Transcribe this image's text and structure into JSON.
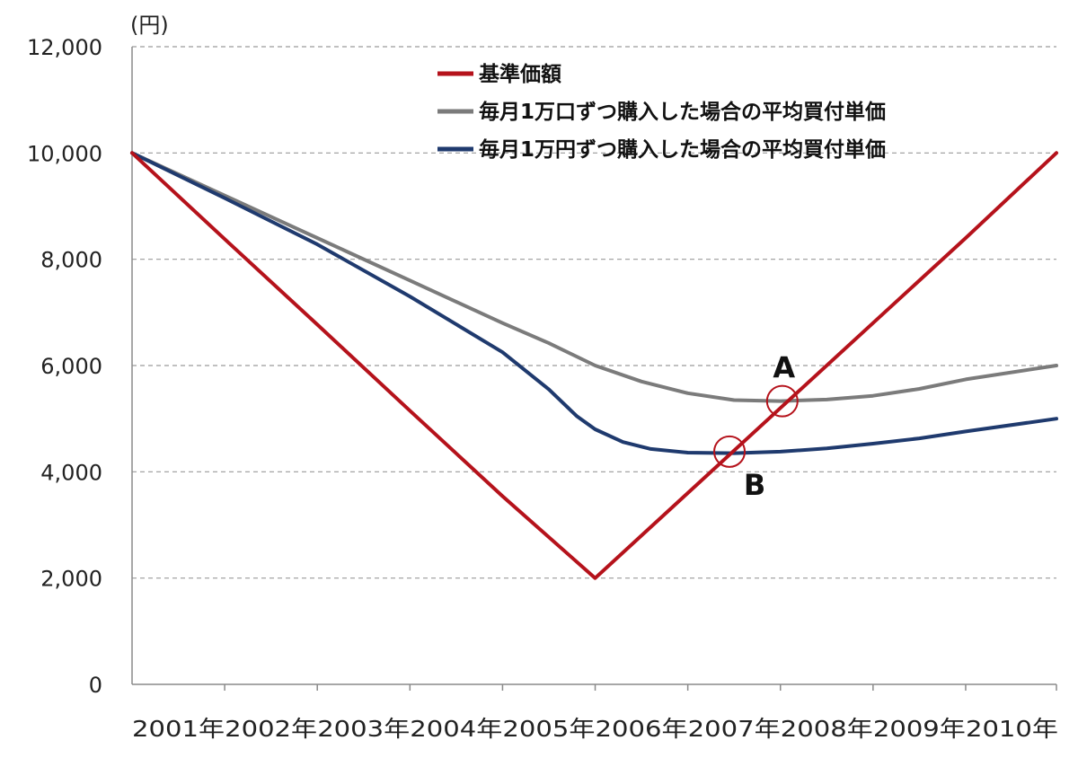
{
  "chart_data": {
    "type": "line",
    "ylabel_unit": "(円)",
    "ylim": [
      0,
      12000
    ],
    "yticks": [
      0,
      2000,
      4000,
      6000,
      8000,
      10000,
      12000
    ],
    "ytick_labels": [
      "0",
      "2,000",
      "4,000",
      "6,000",
      "8,000",
      "10,000",
      "12,000"
    ],
    "xlim": [
      2001,
      2010.98
    ],
    "xticks": [
      2001,
      2002,
      2003,
      2004,
      2005,
      2006,
      2007,
      2008,
      2009,
      2010
    ],
    "xtick_labels": [
      "2001年",
      "2002年",
      "2003年",
      "2004年",
      "2005年",
      "2006年",
      "2007年",
      "2008年",
      "2009年",
      "2010年"
    ],
    "grid": "horizontal dashed",
    "legend_position": "top-right",
    "series": [
      {
        "name": "基準価額",
        "color": "#b5121b",
        "x": [
          2001,
          2002,
          2003,
          2004,
          2005,
          2006,
          2007,
          2008,
          2009,
          2010,
          2010.98
        ],
        "y": [
          10000,
          8380,
          6770,
          5150,
          3540,
          2000,
          3600,
          5200,
          6800,
          8400,
          10000
        ]
      },
      {
        "name": "毎月1万口ずつ購入した場合の平均買付単価",
        "color": "#7b7b7b",
        "x": [
          2001,
          2002,
          2003,
          2004,
          2005,
          2005.5,
          2006,
          2006.5,
          2007,
          2007.5,
          2008,
          2008.5,
          2009,
          2009.5,
          2010,
          2010.98
        ],
        "y": [
          10000,
          9200,
          8400,
          7600,
          6800,
          6420,
          6000,
          5700,
          5480,
          5350,
          5330,
          5360,
          5430,
          5560,
          5740,
          6000
        ]
      },
      {
        "name": "毎月1万円ずつ購入した場合の平均買付単価",
        "color": "#1f3a6e",
        "x": [
          2001,
          2002,
          2003,
          2004,
          2005,
          2005.5,
          2005.8,
          2006,
          2006.3,
          2006.6,
          2007,
          2007.5,
          2008,
          2008.5,
          2009,
          2009.5,
          2010,
          2010.98
        ],
        "y": [
          10000,
          9150,
          8280,
          7300,
          6250,
          5550,
          5050,
          4800,
          4560,
          4430,
          4360,
          4350,
          4380,
          4440,
          4530,
          4630,
          4760,
          5000
        ]
      }
    ],
    "annotations": [
      {
        "label": "A",
        "x": 2008.02,
        "y": 5330
      },
      {
        "label": "B",
        "x": 2007.45,
        "y": 4380
      }
    ]
  }
}
